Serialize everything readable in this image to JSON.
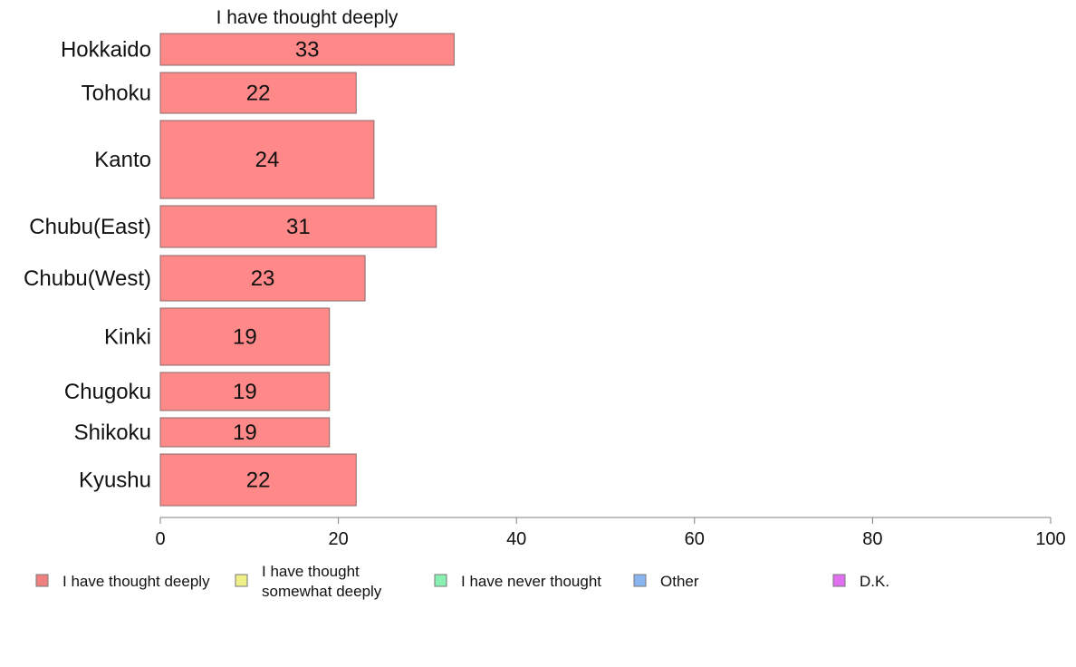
{
  "chart_data": {
    "type": "bar",
    "orientation": "horizontal",
    "title": "I have thought deeply",
    "categories": [
      "Hokkaido",
      "Tohoku",
      "Kanto",
      "Chubu(East)",
      "Chubu(West)",
      "Kinki",
      "Chugoku",
      "Shikoku",
      "Kyushu"
    ],
    "series": [
      {
        "name": "I have thought deeply",
        "color": "#ff8888",
        "values": [
          33,
          22,
          24,
          31,
          23,
          19,
          19,
          19,
          22
        ]
      }
    ],
    "data_labels": [
      "33",
      "22",
      "24",
      "31",
      "23",
      "19",
      "19",
      "19",
      "22"
    ],
    "xlim": [
      0,
      100
    ],
    "xticks": [
      0,
      20,
      40,
      60,
      80,
      100
    ],
    "grid": false,
    "legend_position": "bottom",
    "legend": [
      {
        "label_lines": [
          "I have thought deeply"
        ],
        "color": "#f08080"
      },
      {
        "label_lines": [
          "I have thought",
          "somewhat deeply"
        ],
        "color": "#f0f088"
      },
      {
        "label_lines": [
          "I have never thought"
        ],
        "color": "#88f0b0"
      },
      {
        "label_lines": [
          "Other"
        ],
        "color": "#88b4f0"
      },
      {
        "label_lines": [
          "D.K."
        ],
        "color": "#e070f0"
      }
    ]
  }
}
